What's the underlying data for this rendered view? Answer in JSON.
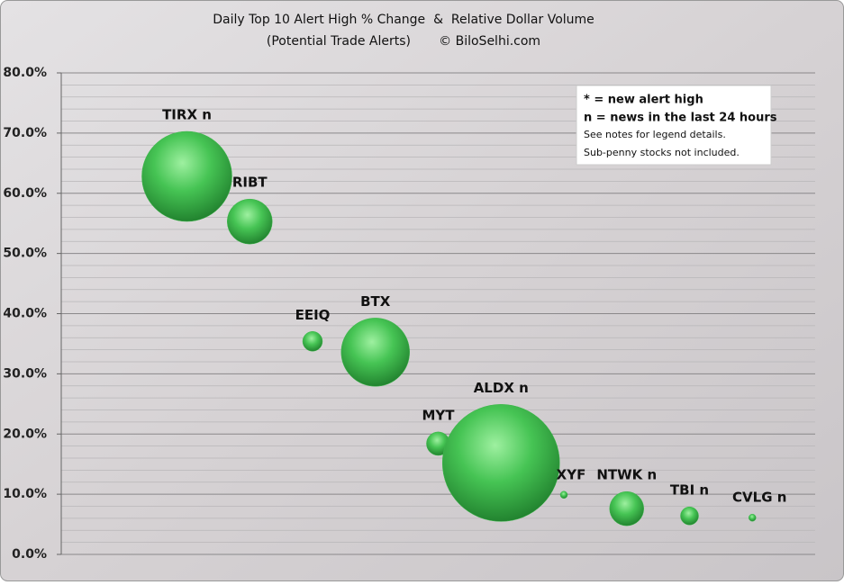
{
  "chart_data": {
    "type": "bubble",
    "title": "Daily Top 10 Alert High % Change  &  Relative Dollar Volume",
    "subtitle": "(Potential Trade Alerts)       © BiloSelhi.com",
    "categories": [
      "TIRX n",
      "RIBT",
      "EEIQ",
      "BTX",
      "MYT",
      "ALDX n",
      "XYF",
      "NTWK n",
      "TBI n",
      "CVLG n"
    ],
    "values": [
      62.8,
      55.3,
      35.4,
      33.6,
      18.4,
      15.2,
      9.9,
      7.6,
      6.4,
      6.1
    ],
    "sizes": [
      25,
      6.25,
      1.2,
      14.4,
      1.7,
      42.3,
      0.16,
      3.6,
      1,
      0.16
    ],
    "color": "#3cb84a",
    "ylim": [
      0,
      80
    ],
    "yticks": [
      {
        "value": 0,
        "label": "0.0%"
      },
      {
        "value": 10,
        "label": "10.0%"
      },
      {
        "value": 20,
        "label": "20.0%"
      },
      {
        "value": 30,
        "label": "30.0%"
      },
      {
        "value": 40,
        "label": "40.0%"
      },
      {
        "value": 50,
        "label": "50.0%"
      },
      {
        "value": 60,
        "label": "60.0%"
      },
      {
        "value": 70,
        "label": "70.0%"
      },
      {
        "value": 80,
        "label": "80.0%"
      }
    ],
    "yminorticks": [
      2,
      4,
      6,
      8,
      12,
      14,
      16,
      18,
      22,
      24,
      26,
      28,
      32,
      34,
      36,
      38,
      42,
      44,
      46,
      48,
      52,
      54,
      56,
      58,
      62,
      64,
      66,
      68,
      72,
      74,
      76,
      78
    ],
    "grid": true,
    "legend_notes": [
      "* = new alert high",
      "n = news in the last 24 hours",
      "See notes for legend details.",
      "Sub-penny stocks not included."
    ]
  }
}
